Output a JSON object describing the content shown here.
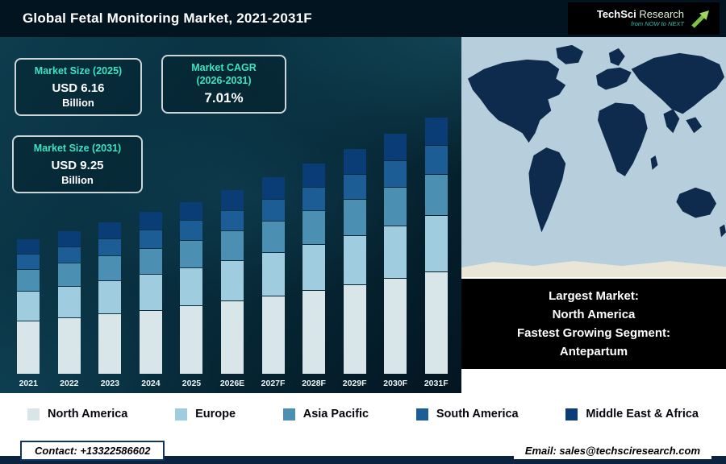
{
  "header": {
    "title": "Global Fetal Monitoring Market, 2021-2031F"
  },
  "brand": {
    "name_primary": "TechSci",
    "name_secondary": "Research",
    "tagline": "from NOW to NEXT"
  },
  "stats": {
    "size_2025": {
      "label": "Market Size (2025)",
      "value": "USD 6.16",
      "unit": "Billion"
    },
    "cagr": {
      "label_line1": "Market CAGR",
      "label_line2": "(2026-2031)",
      "value": "7.01%"
    },
    "size_2031": {
      "label": "Market Size (2031)",
      "value": "USD 9.25",
      "unit": "Billion"
    }
  },
  "map_note": {
    "line1": "Largest Market:",
    "line2": "North America",
    "line3": "Fastest Growing Segment:",
    "line4": "Antepartum"
  },
  "footer": {
    "contact": "Contact: +13322586602",
    "email": "Email: sales@techsciresearch.com"
  },
  "chart_data": {
    "type": "bar",
    "stacked": true,
    "title": "Global Fetal Monitoring Market, 2021-2031F",
    "ylabel": "USD Billion",
    "ylim": [
      0,
      10
    ],
    "grid": false,
    "legend_position": "bottom",
    "categories": [
      "2021",
      "2022",
      "2023",
      "2024",
      "2025",
      "2026E",
      "2027F",
      "2028F",
      "2029F",
      "2030F",
      "2031F"
    ],
    "series": [
      {
        "name": "North America",
        "color": "#d8e5e9",
        "values": [
          1.92,
          2.04,
          2.17,
          2.31,
          2.46,
          2.64,
          2.82,
          3.02,
          3.23,
          3.46,
          3.7
        ]
      },
      {
        "name": "Europe",
        "color": "#9fccdf",
        "values": [
          1.06,
          1.12,
          1.19,
          1.27,
          1.36,
          1.45,
          1.55,
          1.66,
          1.78,
          1.9,
          2.04
        ]
      },
      {
        "name": "Asia Pacific",
        "color": "#4b90b3",
        "values": [
          0.77,
          0.82,
          0.87,
          0.92,
          0.99,
          1.05,
          1.13,
          1.21,
          1.29,
          1.38,
          1.48
        ]
      },
      {
        "name": "South America",
        "color": "#1c5d95",
        "values": [
          0.53,
          0.56,
          0.6,
          0.64,
          0.68,
          0.72,
          0.78,
          0.83,
          0.89,
          0.95,
          1.02
        ]
      },
      {
        "name": "Middle East & Africa",
        "color": "#0a3d75",
        "values": [
          0.52,
          0.56,
          0.59,
          0.64,
          0.67,
          0.73,
          0.78,
          0.83,
          0.89,
          0.95,
          1.01
        ]
      }
    ],
    "totals": [
      4.8,
      5.1,
      5.42,
      5.78,
      6.16,
      6.59,
      7.06,
      7.55,
      8.08,
      8.64,
      9.25
    ],
    "annotations": {
      "market_size_2025_usd_billion": 6.16,
      "market_size_2031_usd_billion": 9.25,
      "cagr_2026_2031_percent": 7.01,
      "largest_market": "North America",
      "fastest_growing_segment": "Antepartum"
    }
  }
}
